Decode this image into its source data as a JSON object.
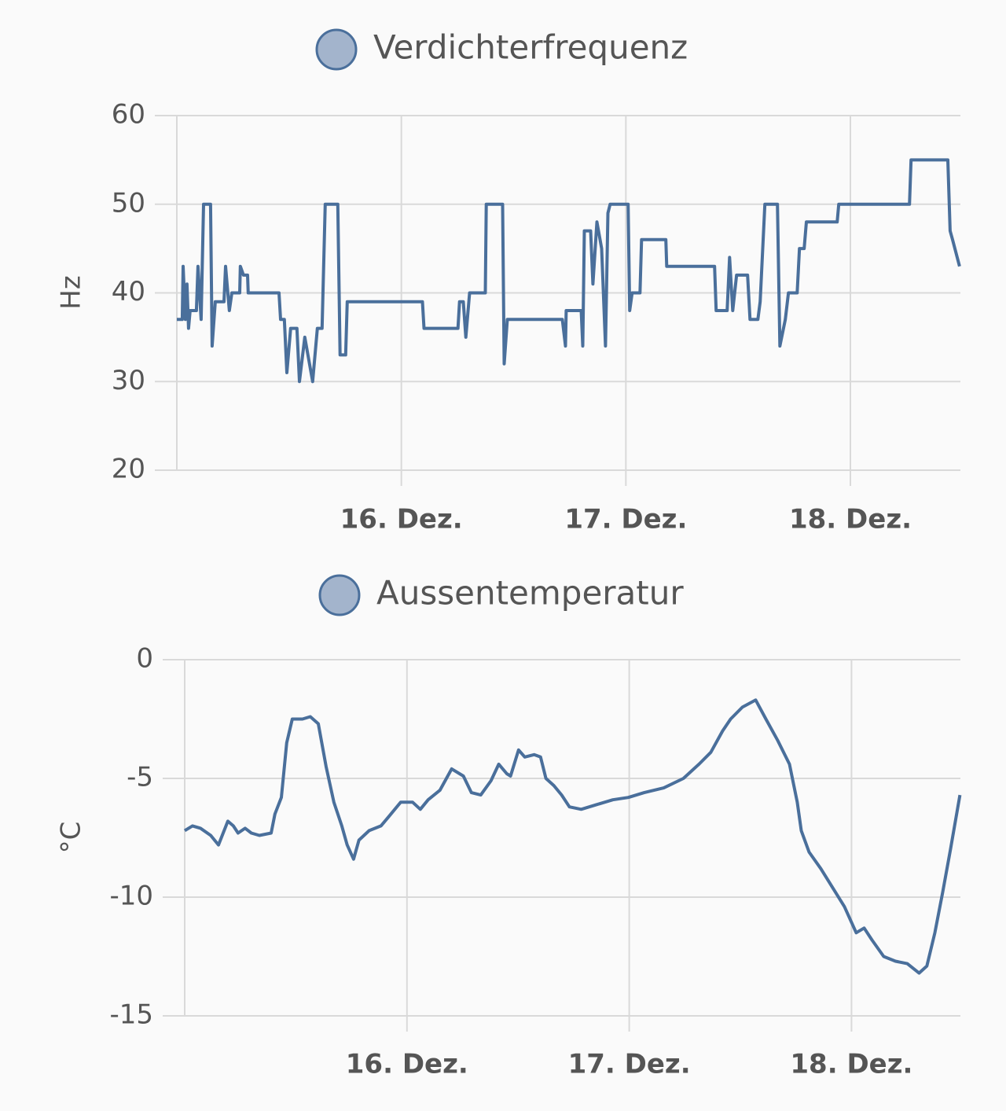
{
  "chart_data": [
    {
      "type": "line",
      "y_label": "Hz",
      "x": [
        15.0,
        15.024,
        15.028,
        15.038,
        15.045,
        15.052,
        15.059,
        15.087,
        15.094,
        15.108,
        15.119,
        15.15,
        15.157,
        15.171,
        15.21,
        15.217,
        15.234,
        15.245,
        15.28,
        15.283,
        15.297,
        15.315,
        15.318,
        15.455,
        15.462,
        15.479,
        15.49,
        15.507,
        15.535,
        15.546,
        15.57,
        15.605,
        15.626,
        15.647,
        15.661,
        15.717,
        15.727,
        15.752,
        15.759,
        16.094,
        16.101,
        16.252,
        16.259,
        16.276,
        16.287,
        16.304,
        16.329,
        16.374,
        16.378,
        16.451,
        16.458,
        16.472,
        16.717,
        16.731,
        16.734,
        16.801,
        16.808,
        16.815,
        16.843,
        16.853,
        16.871,
        16.892,
        16.909,
        16.92,
        16.93,
        17.01,
        17.017,
        17.028,
        17.063,
        17.07,
        17.178,
        17.182,
        17.395,
        17.402,
        17.451,
        17.462,
        17.476,
        17.493,
        17.542,
        17.553,
        17.588,
        17.598,
        17.619,
        17.675,
        17.686,
        17.71,
        17.724,
        17.763,
        17.773,
        17.794,
        17.804,
        17.941,
        17.948,
        18.263,
        18.27,
        18.434,
        18.444,
        18.455,
        18.486
      ],
      "series": [
        {
          "name": "Verdichterfrequenz",
          "color": "#4a6f9b",
          "values": [
            37,
            37,
            43,
            37,
            41,
            36,
            38,
            38,
            43,
            37,
            50,
            50,
            34,
            39,
            39,
            43,
            38,
            40,
            40,
            43,
            42,
            42,
            40,
            40,
            37,
            37,
            31,
            36,
            36,
            30,
            35,
            30,
            36,
            36,
            50,
            50,
            33,
            33,
            39,
            39,
            36,
            36,
            39,
            39,
            35,
            40,
            40,
            40,
            50,
            50,
            32,
            37,
            37,
            34,
            38,
            38,
            34,
            47,
            47,
            41,
            48,
            45,
            34,
            49,
            50,
            50,
            38,
            40,
            40,
            46,
            46,
            43,
            43,
            38,
            38,
            44,
            38,
            42,
            42,
            37,
            37,
            39,
            50,
            50,
            34,
            37,
            40,
            40,
            45,
            45,
            48,
            48,
            50,
            50,
            55,
            55,
            47,
            46,
            43
          ]
        }
      ],
      "xlim": [
        15.0,
        18.49
      ],
      "xticks": [
        {
          "value": 16,
          "label": "16. Dez."
        },
        {
          "value": 17,
          "label": "17. Dez."
        },
        {
          "value": 18,
          "label": "18. Dez."
        }
      ],
      "ylim": [
        20,
        60
      ],
      "yticks": [
        20,
        30,
        40,
        50,
        60
      ],
      "grid": true
    },
    {
      "type": "line",
      "y_label": "°C",
      "x": [
        15.0,
        15.035,
        15.071,
        15.117,
        15.152,
        15.194,
        15.219,
        15.24,
        15.272,
        15.3,
        15.336,
        15.389,
        15.406,
        15.435,
        15.459,
        15.484,
        15.53,
        15.565,
        15.601,
        15.636,
        15.671,
        15.707,
        15.731,
        15.76,
        15.784,
        15.83,
        15.883,
        15.919,
        15.972,
        16.025,
        16.06,
        16.095,
        16.148,
        16.201,
        16.254,
        16.29,
        16.332,
        16.378,
        16.413,
        16.449,
        16.466,
        16.502,
        16.53,
        16.572,
        16.601,
        16.625,
        16.661,
        16.696,
        16.731,
        16.784,
        16.855,
        16.926,
        16.996,
        17.067,
        17.155,
        17.244,
        17.314,
        17.367,
        17.42,
        17.456,
        17.509,
        17.569,
        17.615,
        17.668,
        17.721,
        17.756,
        17.774,
        17.809,
        17.862,
        17.915,
        17.968,
        18.021,
        18.057,
        18.092,
        18.145,
        18.198,
        18.251,
        18.304,
        18.339,
        18.375,
        18.41,
        18.445,
        18.488
      ],
      "series": [
        {
          "name": "Aussentemperatur",
          "color": "#4a6f9b",
          "values": [
            -7.2,
            -7.0,
            -7.1,
            -7.4,
            -7.8,
            -6.8,
            -7.0,
            -7.3,
            -7.1,
            -7.3,
            -7.4,
            -7.3,
            -6.5,
            -5.8,
            -3.5,
            -2.5,
            -2.5,
            -2.4,
            -2.7,
            -4.5,
            -6.0,
            -7.0,
            -7.8,
            -8.4,
            -7.6,
            -7.2,
            -7.0,
            -6.6,
            -6.0,
            -6.0,
            -6.3,
            -5.9,
            -5.5,
            -4.6,
            -4.9,
            -5.6,
            -5.7,
            -5.1,
            -4.4,
            -4.8,
            -4.9,
            -3.8,
            -4.1,
            -4.0,
            -4.1,
            -5.0,
            -5.3,
            -5.7,
            -6.2,
            -6.3,
            -6.1,
            -5.9,
            -5.8,
            -5.6,
            -5.4,
            -5.0,
            -4.4,
            -3.9,
            -3.0,
            -2.5,
            -2.0,
            -1.7,
            -2.5,
            -3.4,
            -4.4,
            -6.0,
            -7.2,
            -8.1,
            -8.8,
            -9.6,
            -10.4,
            -11.5,
            -11.3,
            -11.8,
            -12.5,
            -12.7,
            -12.8,
            -13.2,
            -12.9,
            -11.5,
            -9.8,
            -8.0,
            -5.7
          ]
        }
      ],
      "xlim": [
        15.0,
        18.49
      ],
      "xticks": [
        {
          "value": 16,
          "label": "16. Dez."
        },
        {
          "value": 17,
          "label": "17. Dez."
        },
        {
          "value": 18,
          "label": "18. Dez."
        }
      ],
      "ylim": [
        -15,
        0
      ],
      "yticks": [
        -15,
        -10,
        -5,
        0
      ],
      "grid": true
    }
  ]
}
